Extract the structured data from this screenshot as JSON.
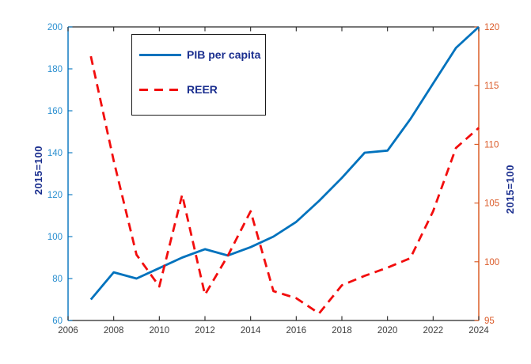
{
  "figure": {
    "background": "#ffffff"
  },
  "chart_data": {
    "type": "line",
    "title": "",
    "grid": false,
    "x": [
      2007,
      2008,
      2009,
      2010,
      2011,
      2012,
      2013,
      2014,
      2015,
      2016,
      2017,
      2018,
      2019,
      2020,
      2021,
      2022,
      2023,
      2024
    ],
    "series": [
      {
        "name": "PIB per capita",
        "axis": "left",
        "style": "solid",
        "color": "#0072BD",
        "values": [
          70,
          83,
          80,
          85,
          90,
          94,
          91,
          95,
          100,
          107,
          117,
          128,
          140,
          141,
          156,
          173,
          190,
          200
        ]
      },
      {
        "name": "REER",
        "axis": "right",
        "style": "dashed",
        "color": "#F20D0D",
        "values": [
          117.5,
          108.6,
          100.6,
          97.9,
          105.7,
          97.2,
          100.5,
          104.3,
          97.5,
          96.9,
          95.6,
          98.0,
          98.8,
          99.5,
          100.3,
          104.3,
          109.7,
          111.4
        ]
      }
    ],
    "x_axis": {
      "min": 2006,
      "max": 2024,
      "ticks": [
        2006,
        2008,
        2010,
        2012,
        2014,
        2016,
        2018,
        2020,
        2022,
        2024
      ],
      "color": "#262626",
      "tick_label_color": "#3d3d3d"
    },
    "left_axis": {
      "label": "2015=100",
      "min": 60,
      "max": 200,
      "ticks": [
        60,
        80,
        100,
        120,
        140,
        160,
        180,
        200
      ],
      "color": "#0072BD",
      "tick_label_color": "#2a8fd0"
    },
    "right_axis": {
      "label": "2015=100",
      "min": 95,
      "max": 120,
      "ticks": [
        95,
        100,
        105,
        110,
        115,
        120
      ],
      "color": "#D95319",
      "tick_label_color": "#DB5A28"
    },
    "legend_position": "upper-left-inside",
    "axis_title_color": "#1b2f8f"
  }
}
